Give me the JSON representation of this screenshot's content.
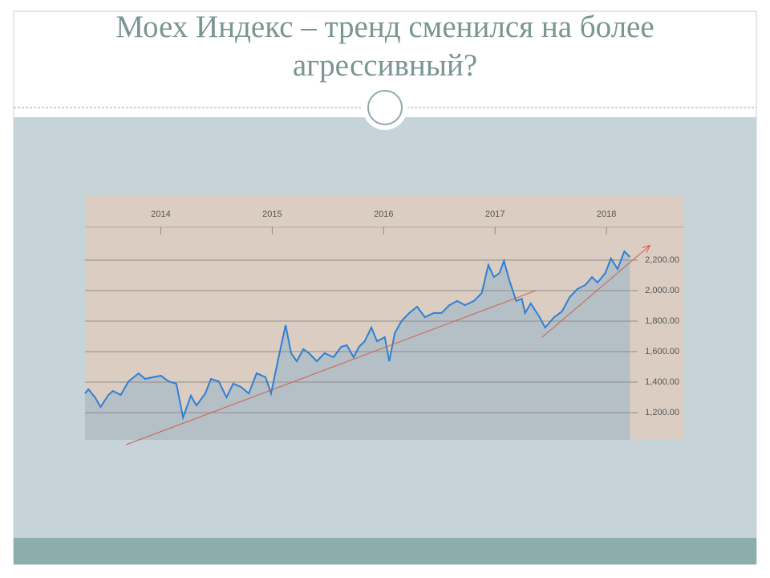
{
  "chart_data": {
    "type": "line",
    "title": "Моех Индекс – тренд сменился на более агрессивный?",
    "x": [
      2013.32,
      2013.35,
      2013.41,
      2013.46,
      2013.53,
      2013.57,
      2013.64,
      2013.71,
      2013.8,
      2013.86,
      2013.93,
      2014.0,
      2014.07,
      2014.14,
      2014.2,
      2014.27,
      2014.32,
      2014.4,
      2014.45,
      2014.52,
      2014.59,
      2014.65,
      2014.72,
      2014.79,
      2014.86,
      2014.94,
      2014.99,
      2015.05,
      2015.12,
      2015.17,
      2015.22,
      2015.28,
      2015.33,
      2015.4,
      2015.47,
      2015.55,
      2015.62,
      2015.67,
      2015.73,
      2015.78,
      2015.83,
      2015.89,
      2015.94,
      2016.01,
      2016.05,
      2016.1,
      2016.16,
      2016.23,
      2016.3,
      2016.37,
      2016.45,
      2016.52,
      2016.59,
      2016.66,
      2016.73,
      2016.81,
      2016.88,
      2016.94,
      2016.99,
      2017.04,
      2017.08,
      2017.13,
      2017.19,
      2017.24,
      2017.27,
      2017.32,
      2017.4,
      2017.45,
      2017.53,
      2017.6,
      2017.67,
      2017.74,
      2017.81,
      2017.87,
      2017.92,
      2017.99,
      2018.04,
      2018.1,
      2018.16,
      2018.21
    ],
    "series": [
      {
        "color": "#2f7fd6",
        "values": [
          1326,
          1353,
          1300,
          1237,
          1316,
          1342,
          1316,
          1405,
          1458,
          1421,
          1432,
          1442,
          1405,
          1390,
          1168,
          1311,
          1247,
          1326,
          1421,
          1405,
          1300,
          1390,
          1368,
          1326,
          1458,
          1432,
          1326,
          1537,
          1774,
          1590,
          1537,
          1616,
          1590,
          1537,
          1590,
          1563,
          1632,
          1642,
          1563,
          1632,
          1668,
          1758,
          1668,
          1695,
          1537,
          1721,
          1800,
          1853,
          1895,
          1826,
          1853,
          1853,
          1905,
          1932,
          1905,
          1932,
          1984,
          2168,
          2089,
          2116,
          2195,
          2063,
          1932,
          1947,
          1853,
          1916,
          1826,
          1758,
          1826,
          1863,
          1958,
          2011,
          2037,
          2089,
          2053,
          2116,
          2211,
          2142,
          2258,
          2221
        ]
      }
    ],
    "area_color": "#b5bfc6",
    "xlim": [
      2013.32,
      2018.69
    ],
    "xticks": [
      2014,
      2015,
      2016,
      2017,
      2018
    ],
    "ylim": [
      1021,
      2416
    ],
    "yticks": [
      {
        "value": 1200,
        "label": "1,200.00"
      },
      {
        "value": 1400,
        "label": "1,400.00"
      },
      {
        "value": 1600,
        "label": "1,600.00"
      },
      {
        "value": 1800,
        "label": "1,800.00"
      },
      {
        "value": 2000,
        "label": "2,000.00"
      },
      {
        "value": 2200,
        "label": "2,200.00"
      }
    ],
    "grid": true
  }
}
